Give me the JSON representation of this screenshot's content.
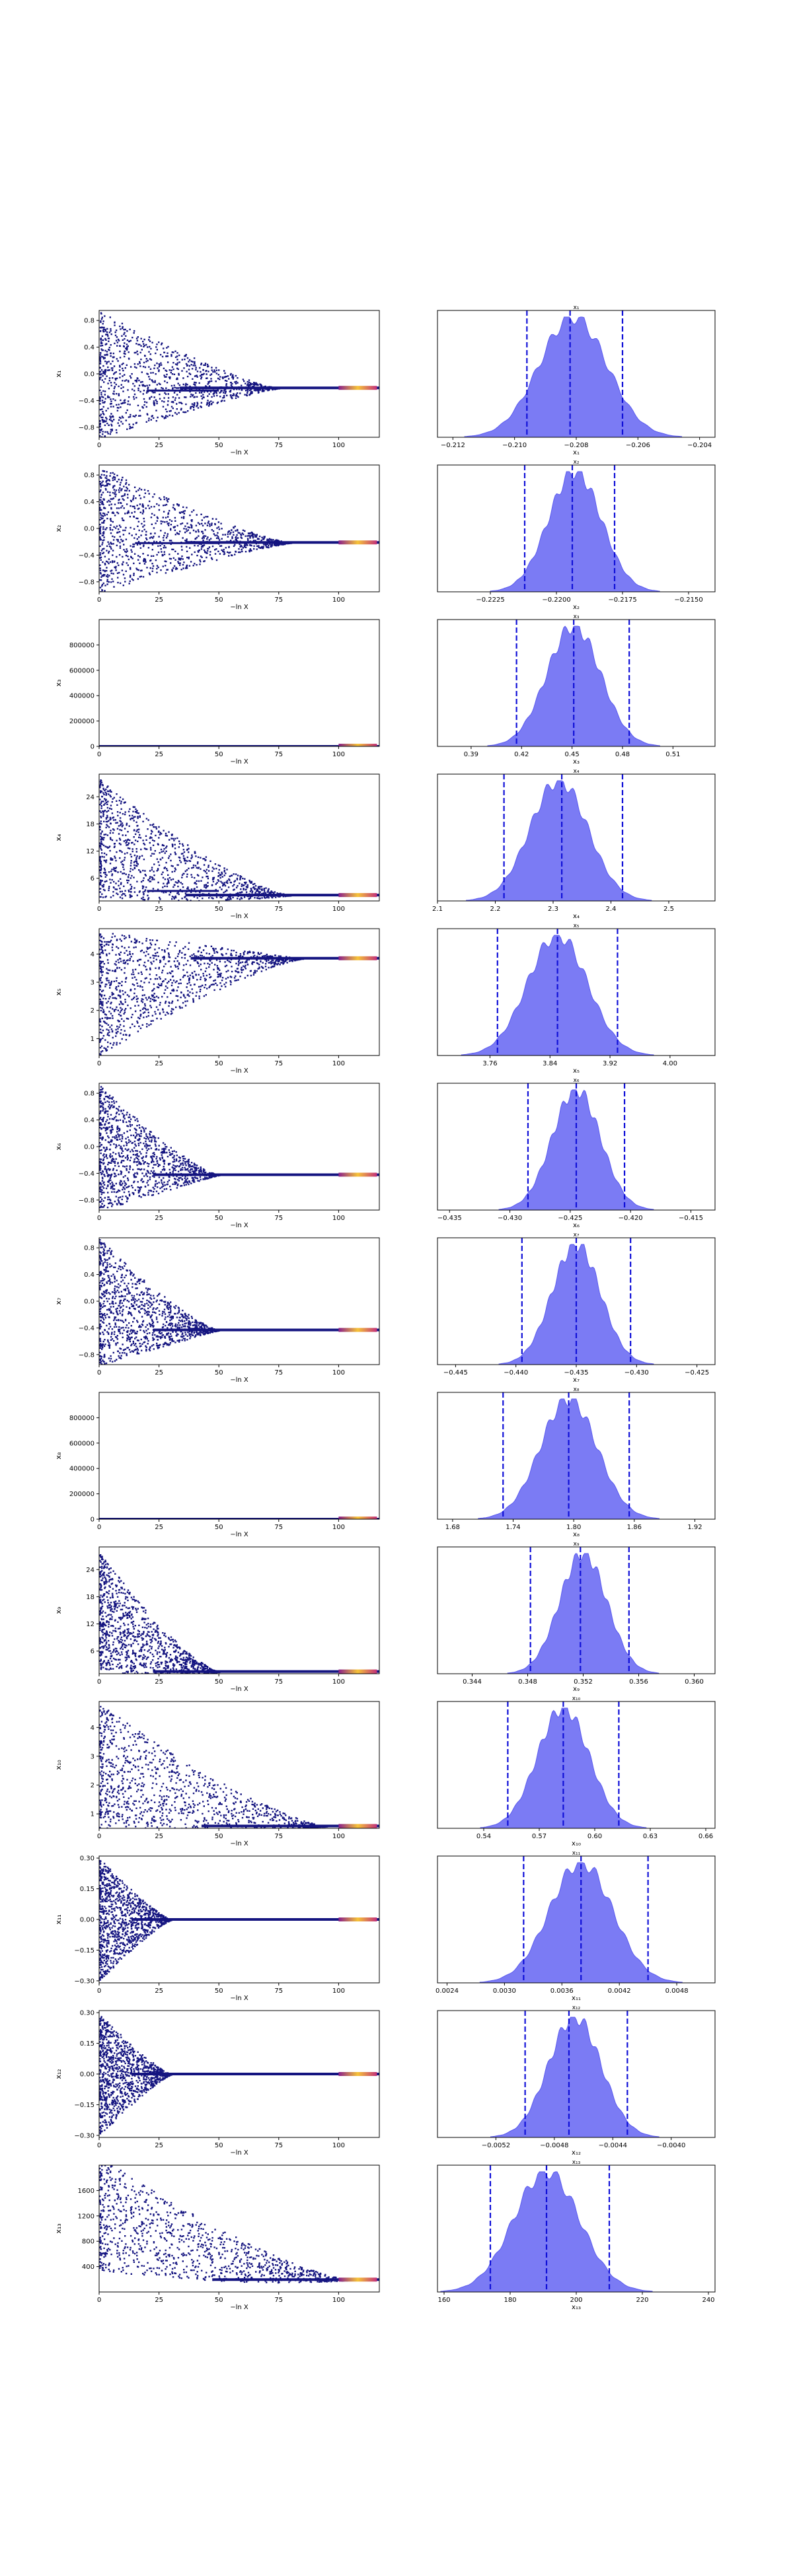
{
  "trace_xlabel": "−ln X",
  "trace_xticks": [
    0,
    25,
    50,
    75,
    100
  ],
  "trace_xlim": [
    0,
    117
  ],
  "chart_data": [
    {
      "type": "scatter",
      "name": "x1",
      "trace_ylabel": "x₁",
      "hist_xlabel": "x₁",
      "trace_ylim": [
        -0.95,
        0.95
      ],
      "trace_yticks": [
        {
          "v": 0.8,
          "t": "0.8"
        },
        {
          "v": 0.4,
          "t": "0.4"
        },
        {
          "v": 0.0,
          "t": "0.0"
        },
        {
          "v": -0.4,
          "t": "−0.4"
        },
        {
          "v": -0.8,
          "t": "−0.8"
        }
      ],
      "trace": {
        "kind": "noisy",
        "noise_amp": 0.95,
        "noise_center": 0,
        "converge": -0.21,
        "decay_until": 75,
        "branch": {
          "from": 20,
          "to": 50,
          "y": -0.25
        }
      },
      "hist_xlim": [
        -0.2125,
        -0.2035
      ],
      "hist_xticks": [
        {
          "v": -0.212,
          "t": "−0.212"
        },
        {
          "v": -0.21,
          "t": "−0.210"
        },
        {
          "v": -0.208,
          "t": "−0.208"
        },
        {
          "v": -0.206,
          "t": "−0.206"
        },
        {
          "v": -0.204,
          "t": "−0.204"
        }
      ],
      "hist_quantiles": [
        -0.2096,
        -0.2082,
        -0.2065
      ],
      "hist_density": {
        "center": -0.2081,
        "sd": 0.0011
      }
    },
    {
      "type": "scatter",
      "name": "x2",
      "trace_ylabel": "x₂",
      "hist_xlabel": "x₂",
      "trace_ylim": [
        -0.95,
        0.95
      ],
      "trace_yticks": [
        {
          "v": 0.8,
          "t": "0.8"
        },
        {
          "v": 0.4,
          "t": "0.4"
        },
        {
          "v": 0.0,
          "t": "0.0"
        },
        {
          "v": -0.4,
          "t": "−0.4"
        },
        {
          "v": -0.8,
          "t": "−0.8"
        }
      ],
      "trace": {
        "kind": "noisy",
        "noise_amp": 0.95,
        "noise_center": 0,
        "converge": -0.21,
        "decay_until": 80,
        "branch": {
          "from": 15,
          "to": 50,
          "y": -0.22
        }
      },
      "hist_xlim": [
        -0.2245,
        -0.214
      ],
      "hist_xticks": [
        {
          "v": -0.2225,
          "t": "−0.2225"
        },
        {
          "v": -0.22,
          "t": "−0.2200"
        },
        {
          "v": -0.2175,
          "t": "−0.2175"
        },
        {
          "v": -0.215,
          "t": "−0.2150"
        }
      ],
      "hist_quantiles": [
        -0.2212,
        -0.2194,
        -0.2178
      ],
      "hist_density": {
        "center": -0.2193,
        "sd": 0.001
      }
    },
    {
      "type": "scatter",
      "name": "x3",
      "trace_ylabel": "x₃",
      "hist_xlabel": "x₃",
      "trace_ylim": [
        0,
        1000000
      ],
      "trace_yticks": [
        {
          "v": 800000,
          "t": "800000"
        },
        {
          "v": 600000,
          "t": "600000"
        },
        {
          "v": 400000,
          "t": "400000"
        },
        {
          "v": 200000,
          "t": "200000"
        },
        {
          "v": 0,
          "t": "0"
        }
      ],
      "trace": {
        "kind": "flat",
        "noise_amp": 0,
        "noise_center": 0,
        "converge": 0,
        "decay_until": 1
      },
      "hist_xlim": [
        0.37,
        0.535
      ],
      "hist_xticks": [
        {
          "v": 0.39,
          "t": "0.39"
        },
        {
          "v": 0.42,
          "t": "0.42"
        },
        {
          "v": 0.45,
          "t": "0.45"
        },
        {
          "v": 0.48,
          "t": "0.48"
        },
        {
          "v": 0.51,
          "t": "0.51"
        }
      ],
      "hist_quantiles": [
        0.417,
        0.451,
        0.484
      ],
      "hist_density": {
        "center": 0.451,
        "sd": 0.016
      }
    },
    {
      "type": "scatter",
      "name": "x4",
      "trace_ylabel": "x₄",
      "hist_xlabel": "x₄",
      "trace_ylim": [
        1,
        29
      ],
      "trace_yticks": [
        {
          "v": 24,
          "t": "24"
        },
        {
          "v": 18,
          "t": "18"
        },
        {
          "v": 12,
          "t": "12"
        },
        {
          "v": 6,
          "t": "6"
        }
      ],
      "trace": {
        "kind": "noisy",
        "noise_amp": 13,
        "noise_center": 15,
        "converge": 2.3,
        "decay_until": 80,
        "branch": {
          "from": 20,
          "to": 50,
          "y": 3.2
        }
      },
      "hist_xlim": [
        2.1,
        2.58
      ],
      "hist_xticks": [
        {
          "v": 2.1,
          "t": "2.1"
        },
        {
          "v": 2.2,
          "t": "2.2"
        },
        {
          "v": 2.3,
          "t": "2.3"
        },
        {
          "v": 2.4,
          "t": "2.4"
        },
        {
          "v": 2.5,
          "t": "2.5"
        }
      ],
      "hist_quantiles": [
        2.215,
        2.315,
        2.42
      ],
      "hist_density": {
        "center": 2.31,
        "sd": 0.05
      }
    },
    {
      "type": "scatter",
      "name": "x5",
      "trace_ylabel": "x₅",
      "hist_xlabel": "x₅",
      "trace_ylim": [
        0.4,
        4.9
      ],
      "trace_yticks": [
        {
          "v": 4,
          "t": "4"
        },
        {
          "v": 3,
          "t": "3"
        },
        {
          "v": 2,
          "t": "2"
        },
        {
          "v": 1,
          "t": "1"
        }
      ],
      "trace": {
        "kind": "noisy",
        "noise_amp": 2.2,
        "noise_center": 2.6,
        "converge": 3.85,
        "decay_until": 85
      },
      "hist_xlim": [
        3.69,
        4.06
      ],
      "hist_xticks": [
        {
          "v": 3.76,
          "t": "3.76"
        },
        {
          "v": 3.84,
          "t": "3.84"
        },
        {
          "v": 3.92,
          "t": "3.92"
        },
        {
          "v": 4.0,
          "t": "4.00"
        }
      ],
      "hist_quantiles": [
        3.77,
        3.85,
        3.93
      ],
      "hist_density": {
        "center": 3.85,
        "sd": 0.04
      }
    },
    {
      "type": "scatter",
      "name": "x6",
      "trace_ylabel": "x₆",
      "hist_xlabel": "x₆",
      "trace_ylim": [
        -0.95,
        0.95
      ],
      "trace_yticks": [
        {
          "v": 0.8,
          "t": "0.8"
        },
        {
          "v": 0.4,
          "t": "0.4"
        },
        {
          "v": 0.0,
          "t": "0.0"
        },
        {
          "v": -0.4,
          "t": "−0.4"
        },
        {
          "v": -0.8,
          "t": "−0.8"
        }
      ],
      "trace": {
        "kind": "noisy",
        "noise_amp": 0.95,
        "noise_center": 0,
        "converge": -0.42,
        "decay_until": 50
      },
      "hist_xlim": [
        -0.436,
        -0.413
      ],
      "hist_xticks": [
        {
          "v": -0.435,
          "t": "−0.435"
        },
        {
          "v": -0.43,
          "t": "−0.430"
        },
        {
          "v": -0.425,
          "t": "−0.425"
        },
        {
          "v": -0.42,
          "t": "−0.420"
        },
        {
          "v": -0.415,
          "t": "−0.415"
        }
      ],
      "hist_quantiles": [
        -0.4285,
        -0.4245,
        -0.4205
      ],
      "hist_density": {
        "center": -0.4245,
        "sd": 0.002
      }
    },
    {
      "type": "scatter",
      "name": "x7",
      "trace_ylabel": "x₇",
      "hist_xlabel": "x₇",
      "trace_ylim": [
        -0.95,
        0.95
      ],
      "trace_yticks": [
        {
          "v": 0.8,
          "t": "0.8"
        },
        {
          "v": 0.4,
          "t": "0.4"
        },
        {
          "v": 0.0,
          "t": "0.0"
        },
        {
          "v": -0.4,
          "t": "−0.4"
        },
        {
          "v": -0.8,
          "t": "−0.8"
        }
      ],
      "trace": {
        "kind": "noisy",
        "noise_amp": 0.95,
        "noise_center": 0,
        "converge": -0.43,
        "decay_until": 50
      },
      "hist_xlim": [
        -0.4465,
        -0.4235
      ],
      "hist_xticks": [
        {
          "v": -0.445,
          "t": "−0.445"
        },
        {
          "v": -0.44,
          "t": "−0.440"
        },
        {
          "v": -0.435,
          "t": "−0.435"
        },
        {
          "v": -0.43,
          "t": "−0.430"
        },
        {
          "v": -0.425,
          "t": "−0.425"
        }
      ],
      "hist_quantiles": [
        -0.4395,
        -0.435,
        -0.4305
      ],
      "hist_density": {
        "center": -0.435,
        "sd": 0.002
      }
    },
    {
      "type": "scatter",
      "name": "x8",
      "trace_ylabel": "x₈",
      "hist_xlabel": "x₈",
      "trace_ylim": [
        0,
        1000000
      ],
      "trace_yticks": [
        {
          "v": 800000,
          "t": "800000"
        },
        {
          "v": 600000,
          "t": "600000"
        },
        {
          "v": 400000,
          "t": "400000"
        },
        {
          "v": 200000,
          "t": "200000"
        },
        {
          "v": 0,
          "t": "0"
        }
      ],
      "trace": {
        "kind": "flat",
        "noise_amp": 0,
        "noise_center": 0,
        "converge": 0,
        "decay_until": 1
      },
      "hist_xlim": [
        1.665,
        1.94
      ],
      "hist_xticks": [
        {
          "v": 1.68,
          "t": "1.68"
        },
        {
          "v": 1.74,
          "t": "1.74"
        },
        {
          "v": 1.8,
          "t": "1.80"
        },
        {
          "v": 1.86,
          "t": "1.86"
        },
        {
          "v": 1.92,
          "t": "1.92"
        }
      ],
      "hist_quantiles": [
        1.73,
        1.795,
        1.855
      ],
      "hist_density": {
        "center": 1.795,
        "sd": 0.028
      }
    },
    {
      "type": "scatter",
      "name": "x9",
      "trace_ylabel": "x₉",
      "hist_xlabel": "x₉",
      "trace_ylim": [
        1,
        29
      ],
      "trace_yticks": [
        {
          "v": 24,
          "t": "24"
        },
        {
          "v": 18,
          "t": "18"
        },
        {
          "v": 12,
          "t": "12"
        },
        {
          "v": 6,
          "t": "6"
        }
      ],
      "trace": {
        "kind": "noisy",
        "noise_amp": 13,
        "noise_center": 15,
        "converge": 1.5,
        "decay_until": 50
      },
      "hist_xlim": [
        0.3415,
        0.3615
      ],
      "hist_xticks": [
        {
          "v": 0.344,
          "t": "0.344"
        },
        {
          "v": 0.348,
          "t": "0.348"
        },
        {
          "v": 0.352,
          "t": "0.352"
        },
        {
          "v": 0.356,
          "t": "0.356"
        },
        {
          "v": 0.36,
          "t": "0.360"
        }
      ],
      "hist_quantiles": [
        0.3482,
        0.3518,
        0.3553
      ],
      "hist_density": {
        "center": 0.352,
        "sd": 0.0017
      }
    },
    {
      "type": "scatter",
      "name": "x10",
      "trace_ylabel": "x₁₀",
      "hist_xlabel": "x₁₀",
      "trace_ylim": [
        0.5,
        4.9
      ],
      "trace_yticks": [
        {
          "v": 4,
          "t": "4"
        },
        {
          "v": 3,
          "t": "3"
        },
        {
          "v": 2,
          "t": "2"
        },
        {
          "v": 1,
          "t": "1"
        }
      ],
      "trace": {
        "kind": "noisy",
        "noise_amp": 2.2,
        "noise_center": 2.7,
        "converge": 0.58,
        "decay_until": 95
      },
      "hist_xlim": [
        0.515,
        0.665
      ],
      "hist_xticks": [
        {
          "v": 0.54,
          "t": "0.54"
        },
        {
          "v": 0.57,
          "t": "0.57"
        },
        {
          "v": 0.6,
          "t": "0.60"
        },
        {
          "v": 0.63,
          "t": "0.63"
        },
        {
          "v": 0.66,
          "t": "0.66"
        }
      ],
      "hist_quantiles": [
        0.553,
        0.583,
        0.613
      ],
      "hist_density": {
        "center": 0.583,
        "sd": 0.014
      }
    },
    {
      "type": "scatter",
      "name": "x11",
      "trace_ylabel": "x₁₁",
      "hist_xlabel": "x₁₁",
      "trace_ylim": [
        -0.31,
        0.31
      ],
      "trace_yticks": [
        {
          "v": 0.3,
          "t": "0.30"
        },
        {
          "v": 0.15,
          "t": "0.15"
        },
        {
          "v": 0.0,
          "t": "0.00"
        },
        {
          "v": -0.15,
          "t": "−0.15"
        },
        {
          "v": -0.3,
          "t": "−0.30"
        }
      ],
      "trace": {
        "kind": "noisy",
        "noise_amp": 0.3,
        "noise_center": 0,
        "converge": 0.0,
        "decay_until": 30
      },
      "hist_xlim": [
        0.0023,
        0.0052
      ],
      "hist_xticks": [
        {
          "v": 0.0024,
          "t": "0.0024"
        },
        {
          "v": 0.003,
          "t": "0.0030"
        },
        {
          "v": 0.0036,
          "t": "0.0036"
        },
        {
          "v": 0.0042,
          "t": "0.0042"
        },
        {
          "v": 0.0048,
          "t": "0.0048"
        }
      ],
      "hist_quantiles": [
        0.0032,
        0.0038,
        0.0045
      ],
      "hist_density": {
        "center": 0.0038,
        "sd": 0.00033
      }
    },
    {
      "type": "scatter",
      "name": "x12",
      "trace_ylabel": "x₁₂",
      "hist_xlabel": "x₁₂",
      "trace_ylim": [
        -0.31,
        0.31
      ],
      "trace_yticks": [
        {
          "v": 0.3,
          "t": "0.30"
        },
        {
          "v": 0.15,
          "t": "0.15"
        },
        {
          "v": 0.0,
          "t": "0.00"
        },
        {
          "v": -0.15,
          "t": "−0.15"
        },
        {
          "v": -0.3,
          "t": "−0.30"
        }
      ],
      "trace": {
        "kind": "noisy",
        "noise_amp": 0.3,
        "noise_center": 0,
        "converge": 0.0,
        "decay_until": 30
      },
      "hist_xlim": [
        -0.0056,
        -0.0037
      ],
      "hist_xticks": [
        {
          "v": -0.0052,
          "t": "−0.0052"
        },
        {
          "v": -0.0048,
          "t": "−0.0048"
        },
        {
          "v": -0.0044,
          "t": "−0.0044"
        },
        {
          "v": -0.004,
          "t": "−0.0040"
        }
      ],
      "hist_quantiles": [
        -0.005,
        -0.0047,
        -0.0043
      ],
      "hist_density": {
        "center": -0.00466,
        "sd": 0.00018
      }
    },
    {
      "type": "scatter",
      "name": "x13",
      "trace_ylabel": "x₁₃",
      "hist_xlabel": "x₁₃",
      "trace_ylim": [
        0,
        2000
      ],
      "trace_yticks": [
        {
          "v": 1600,
          "t": "1600"
        },
        {
          "v": 1200,
          "t": "1200"
        },
        {
          "v": 800,
          "t": "800"
        },
        {
          "v": 400,
          "t": "400"
        }
      ],
      "trace": {
        "kind": "noisy",
        "noise_amp": 900,
        "noise_center": 1250,
        "converge": 195,
        "decay_until": 105
      },
      "hist_xlim": [
        158,
        242
      ],
      "hist_xticks": [
        {
          "v": 160,
          "t": "160"
        },
        {
          "v": 180,
          "t": "180"
        },
        {
          "v": 200,
          "t": "200"
        },
        {
          "v": 220,
          "t": "220"
        },
        {
          "v": 240,
          "t": "240"
        }
      ],
      "hist_quantiles": [
        174,
        191,
        210
      ],
      "hist_density": {
        "center": 191,
        "sd": 10
      }
    }
  ]
}
